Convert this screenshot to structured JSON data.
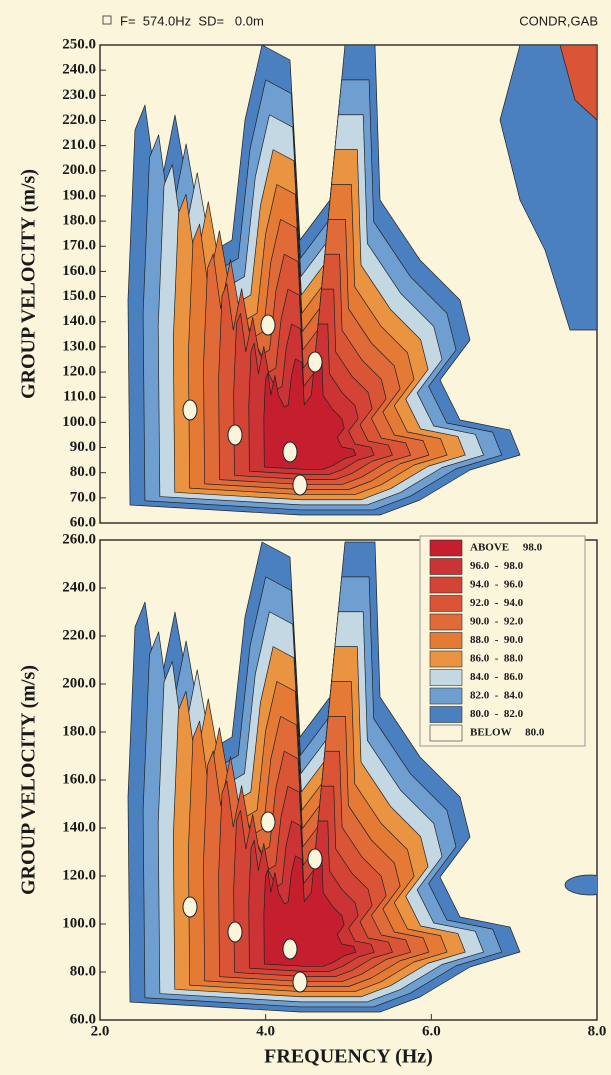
{
  "chart_data": [
    {
      "type": "contour",
      "annotations": [
        "F=  574.0Hz  SD=   0.0m",
        "CONDR,GAB"
      ],
      "ylabel": "GROUP VELOCITY (m/s)",
      "xlim": [
        2,
        8
      ],
      "ylim": [
        60,
        250
      ],
      "yticks": [
        {
          "value": 60,
          "label": "60.0"
        },
        {
          "value": 70,
          "label": "70.0"
        },
        {
          "value": 80,
          "label": "80.0"
        },
        {
          "value": 90,
          "label": "90.0"
        },
        {
          "value": 100,
          "label": "100.0"
        },
        {
          "value": 110,
          "label": "110.0"
        },
        {
          "value": 120,
          "label": "120.0"
        },
        {
          "value": 130,
          "label": "130.0"
        },
        {
          "value": 140,
          "label": "140.0"
        },
        {
          "value": 150,
          "label": "150.0"
        },
        {
          "value": 160,
          "label": "160.0"
        },
        {
          "value": 170,
          "label": "170.0"
        },
        {
          "value": 180,
          "label": "180.0"
        },
        {
          "value": 190,
          "label": "190.0"
        },
        {
          "value": 200,
          "label": "200.0"
        },
        {
          "value": 210,
          "label": "210.0"
        },
        {
          "value": 220,
          "label": "220.0"
        },
        {
          "value": 230,
          "label": "230.0"
        },
        {
          "value": 240,
          "label": "240.0"
        },
        {
          "value": 250,
          "label": "250.0"
        }
      ]
    },
    {
      "type": "contour",
      "ylabel": "GROUP VELOCITY (m/s)",
      "xlabel": "FREQUENCY (Hz)",
      "xlim": [
        2,
        8
      ],
      "ylim": [
        60,
        260
      ],
      "xticks": [
        {
          "value": 2,
          "label": "2.0"
        },
        {
          "value": 4,
          "label": "4.0"
        },
        {
          "value": 6,
          "label": "6.0"
        },
        {
          "value": 8,
          "label": "8.0"
        }
      ],
      "yticks": [
        {
          "value": 60,
          "label": "60.0"
        },
        {
          "value": 80,
          "label": "80.0"
        },
        {
          "value": 100,
          "label": "100.0"
        },
        {
          "value": 120,
          "label": "120.0"
        },
        {
          "value": 140,
          "label": "140.0"
        },
        {
          "value": 160,
          "label": "160.0"
        },
        {
          "value": 180,
          "label": "180.0"
        },
        {
          "value": 200,
          "label": "200.0"
        },
        {
          "value": 220,
          "label": "220.0"
        },
        {
          "value": 240,
          "label": "240.0"
        },
        {
          "value": 260,
          "label": "260.0"
        }
      ],
      "legend": [
        {
          "label": "ABOVE     98.0",
          "color": "#c41e2f"
        },
        {
          "label": "96.0  -  98.0",
          "color": "#cc3335"
        },
        {
          "label": "94.0  -  96.0",
          "color": "#d44436"
        },
        {
          "label": "92.0  -  94.0",
          "color": "#da5535"
        },
        {
          "label": "90.0  -  92.0",
          "color": "#e06a38"
        },
        {
          "label": "88.0  -  90.0",
          "color": "#e57a35"
        },
        {
          "label": "86.0  -  88.0",
          "color": "#ea9340"
        },
        {
          "label": "84.0  -  86.0",
          "color": "#c4d8e4"
        },
        {
          "label": "82.0  -  84.0",
          "color": "#6f9fd0"
        },
        {
          "label": "80.0  -  82.0",
          "color": "#4a7fc0"
        },
        {
          "label": "BELOW     80.0",
          "color": "#fbf5dc"
        }
      ]
    }
  ]
}
